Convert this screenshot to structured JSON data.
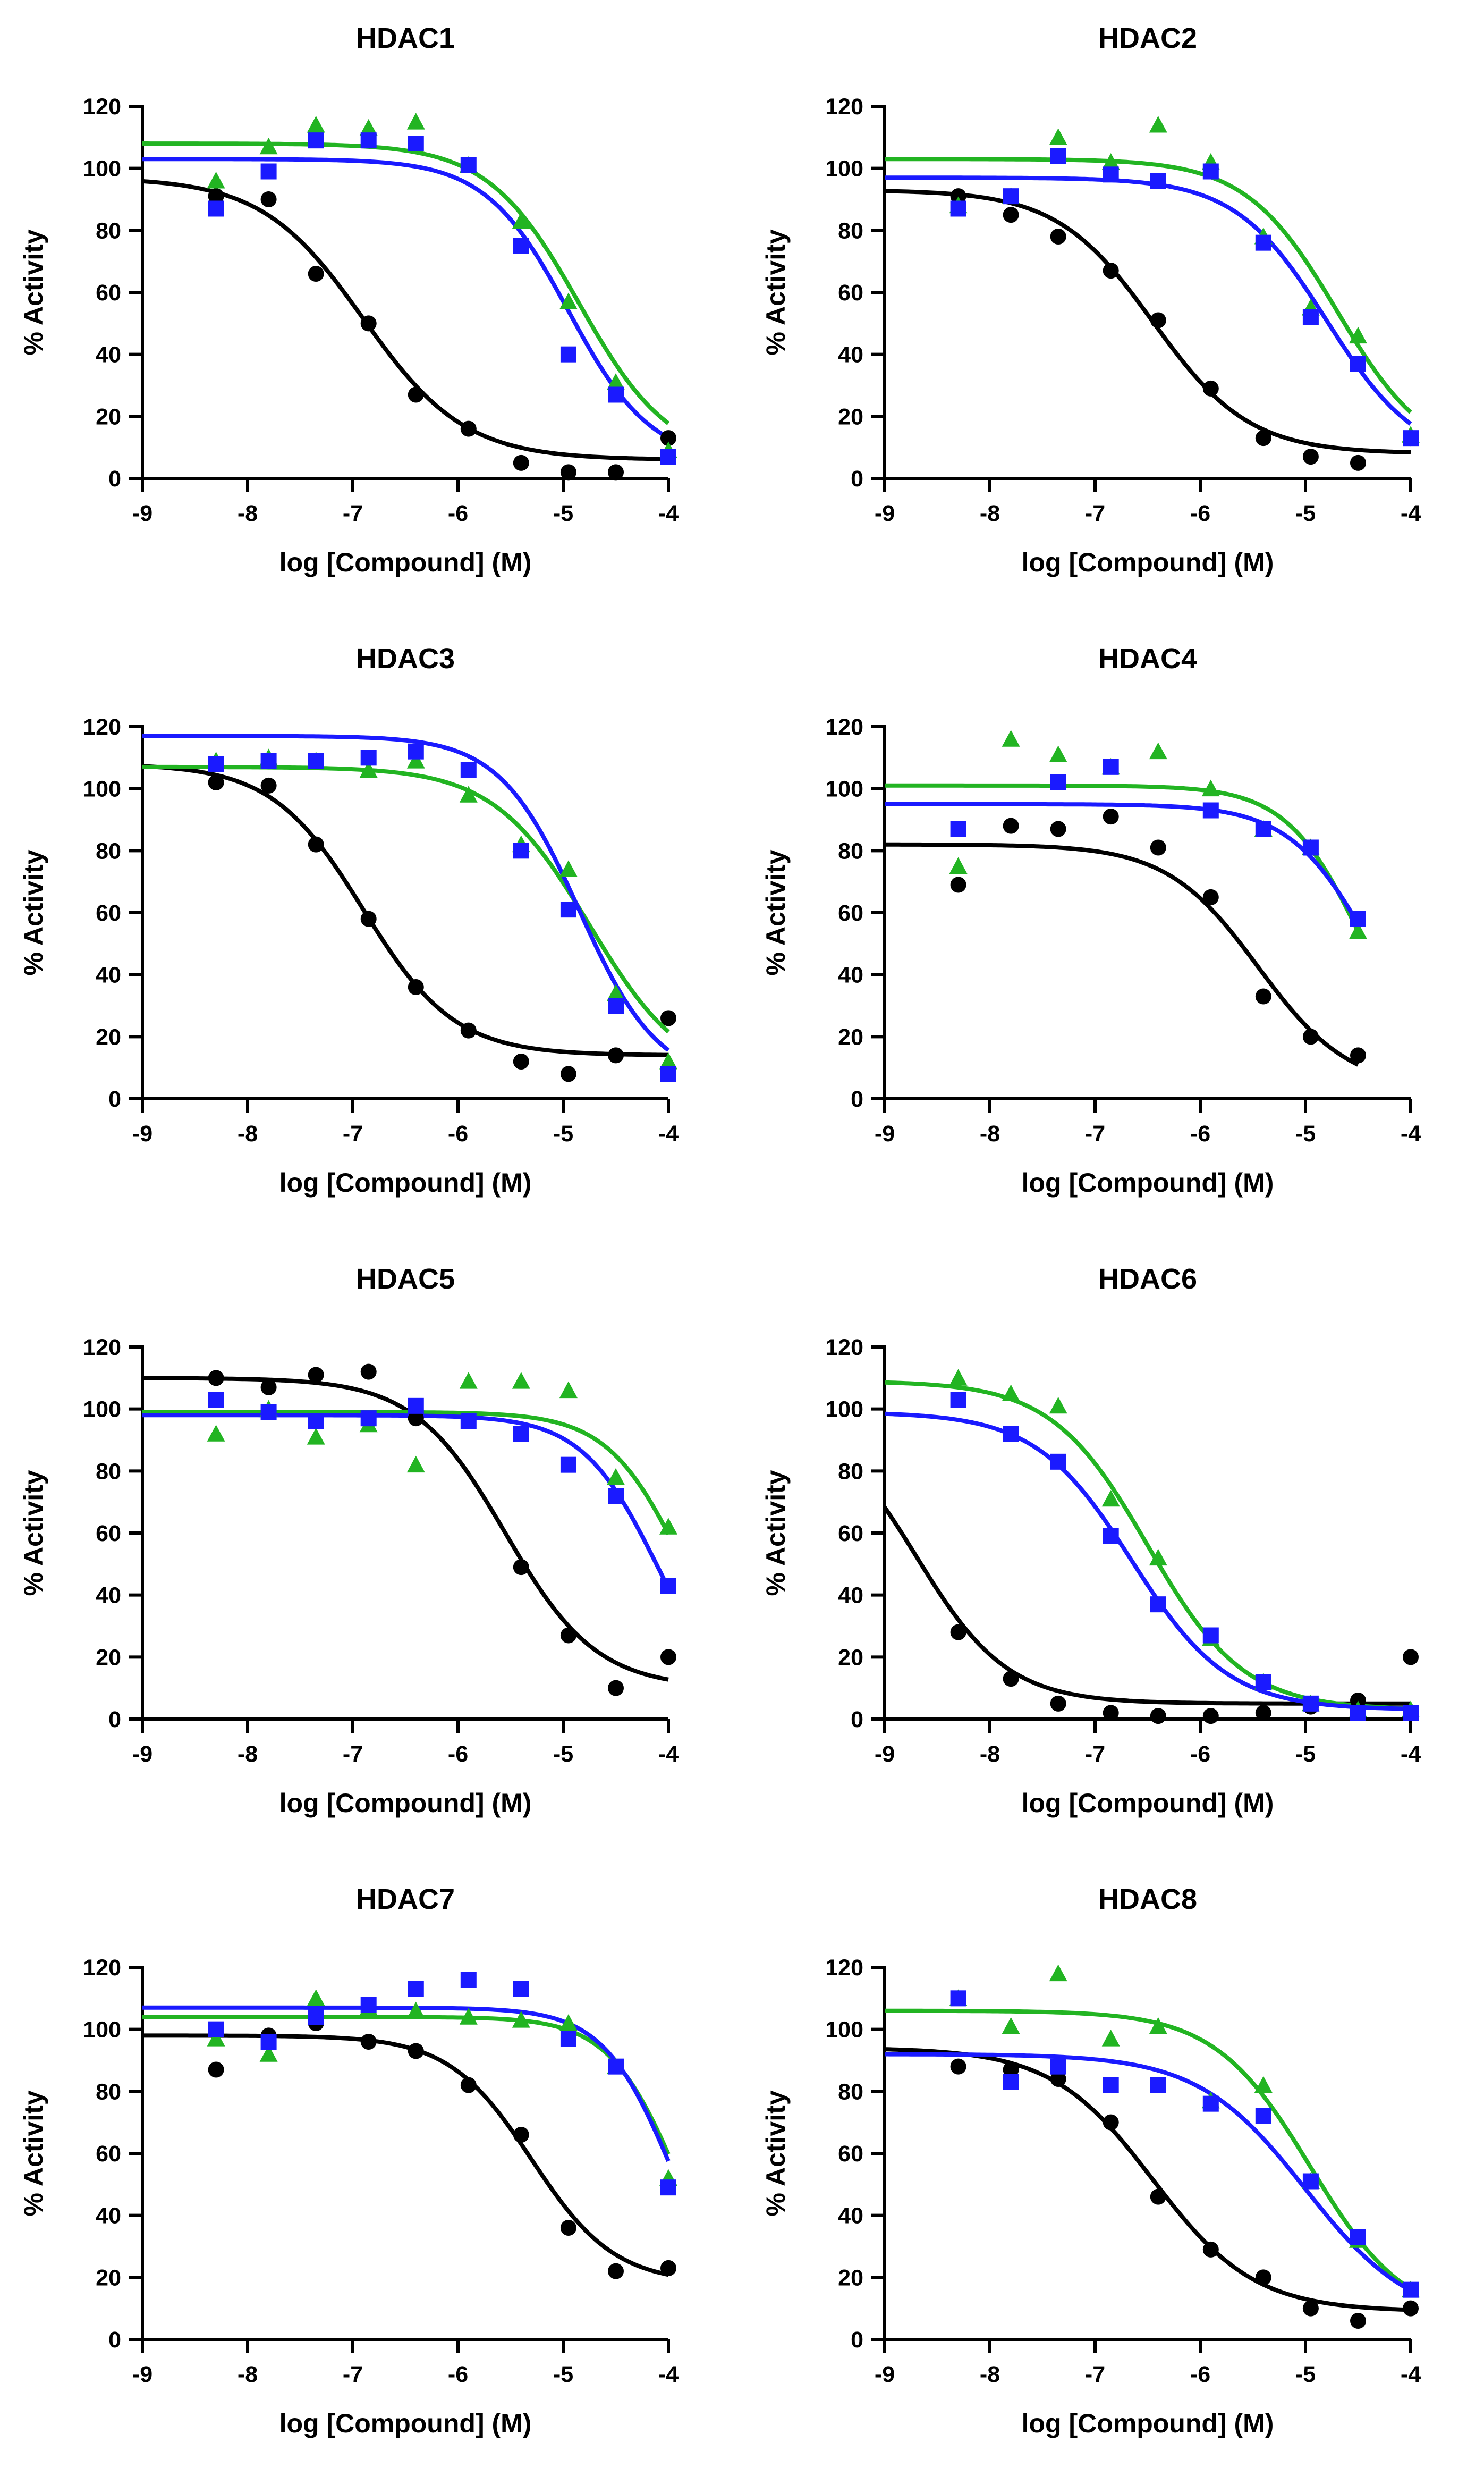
{
  "figure": {
    "x_axis_label": "log [Compound] (M)",
    "y_axis_label": "% Activity"
  },
  "series_colors": {
    "black": "#000000",
    "green": "#22b422",
    "blue": "#1a1aff"
  },
  "chart_data": [
    {
      "type": "scatter",
      "title": "HDAC1",
      "xlabel": "log [Compound] (M)",
      "ylabel": "% Activity",
      "xlim": [
        -9,
        -4
      ],
      "xticks": [
        -9,
        -8,
        -7,
        -6,
        -5,
        -4
      ],
      "ylim": [
        0,
        120
      ],
      "yticks": [
        0,
        20,
        40,
        60,
        80,
        100,
        120
      ],
      "series": [
        {
          "name": "black",
          "color": "#000000",
          "marker": "circle",
          "x": [
            -8.3,
            -7.8,
            -7.35,
            -6.85,
            -6.4,
            -5.9,
            -5.4,
            -4.95,
            -4.5,
            -4.0
          ],
          "y": [
            91,
            90,
            66,
            50,
            27,
            16,
            5,
            2,
            2,
            13
          ],
          "fit": {
            "top": 97,
            "bottom": 6,
            "logIC50": -6.9,
            "hill": 0.9
          }
        },
        {
          "name": "green",
          "color": "#22b422",
          "marker": "triangle",
          "x": [
            -8.3,
            -7.8,
            -7.35,
            -6.85,
            -6.4,
            -5.9,
            -5.4,
            -4.95,
            -4.5,
            -4.0
          ],
          "y": [
            96,
            107,
            114,
            113,
            115,
            101,
            83,
            57,
            31,
            9
          ],
          "fit": {
            "top": 108,
            "bottom": 5,
            "logIC50": -4.85,
            "hill": 1.0
          }
        },
        {
          "name": "blue",
          "color": "#1a1aff",
          "marker": "square",
          "x": [
            -8.3,
            -7.8,
            -7.35,
            -6.85,
            -6.4,
            -5.9,
            -5.4,
            -4.95,
            -4.5,
            -4.0
          ],
          "y": [
            87,
            99,
            109,
            109,
            108,
            101,
            75,
            40,
            27,
            7
          ],
          "fit": {
            "top": 103,
            "bottom": 5,
            "logIC50": -4.95,
            "hill": 1.1
          }
        }
      ]
    },
    {
      "type": "scatter",
      "title": "HDAC2",
      "xlabel": "log [Compound] (M)",
      "ylabel": "% Activity",
      "xlim": [
        -9,
        -4
      ],
      "xticks": [
        -9,
        -8,
        -7,
        -6,
        -5,
        -4
      ],
      "ylim": [
        0,
        120
      ],
      "yticks": [
        0,
        20,
        40,
        60,
        80,
        100,
        120
      ],
      "series": [
        {
          "name": "black",
          "color": "#000000",
          "marker": "circle",
          "x": [
            -8.3,
            -7.8,
            -7.35,
            -6.85,
            -6.4,
            -5.9,
            -5.4,
            -4.95,
            -4.5,
            -4.0
          ],
          "y": [
            91,
            85,
            78,
            67,
            51,
            29,
            13,
            7,
            5,
            13
          ],
          "fit": {
            "top": 93,
            "bottom": 8,
            "logIC50": -6.45,
            "hill": 0.95
          }
        },
        {
          "name": "green",
          "color": "#22b422",
          "marker": "triangle",
          "x": [
            -8.3,
            -7.8,
            -7.35,
            -6.85,
            -6.4,
            -5.9,
            -5.4,
            -4.95,
            -4.5,
            -4.0
          ],
          "y": [
            88,
            91,
            110,
            102,
            114,
            102,
            78,
            55,
            46,
            14
          ],
          "fit": {
            "top": 103,
            "bottom": 5,
            "logIC50": -4.7,
            "hill": 1.0
          }
        },
        {
          "name": "blue",
          "color": "#1a1aff",
          "marker": "square",
          "x": [
            -8.3,
            -7.8,
            -7.35,
            -6.85,
            -6.4,
            -5.9,
            -5.4,
            -4.95,
            -4.5,
            -4.0
          ],
          "y": [
            87,
            91,
            104,
            98,
            96,
            99,
            76,
            52,
            37,
            13
          ],
          "fit": {
            "top": 97,
            "bottom": 5,
            "logIC50": -4.8,
            "hill": 1.0
          }
        }
      ]
    },
    {
      "type": "scatter",
      "title": "HDAC3",
      "xlabel": "log [Compound] (M)",
      "ylabel": "% Activity",
      "xlim": [
        -9,
        -4
      ],
      "xticks": [
        -9,
        -8,
        -7,
        -6,
        -5,
        -4
      ],
      "ylim": [
        0,
        120
      ],
      "yticks": [
        0,
        20,
        40,
        60,
        80,
        100,
        120
      ],
      "series": [
        {
          "name": "black",
          "color": "#000000",
          "marker": "circle",
          "x": [
            -8.3,
            -7.8,
            -7.35,
            -6.85,
            -6.4,
            -5.9,
            -5.4,
            -4.95,
            -4.5,
            -4.0
          ],
          "y": [
            102,
            101,
            82,
            58,
            36,
            22,
            12,
            8,
            14,
            26
          ],
          "fit": {
            "top": 108,
            "bottom": 14,
            "logIC50": -6.9,
            "hill": 1.0
          }
        },
        {
          "name": "green",
          "color": "#22b422",
          "marker": "triangle",
          "x": [
            -8.3,
            -7.8,
            -7.35,
            -6.85,
            -6.4,
            -5.9,
            -5.4,
            -4.95,
            -4.5,
            -4.0
          ],
          "y": [
            109,
            110,
            109,
            106,
            109,
            98,
            82,
            74,
            34,
            12
          ],
          "fit": {
            "top": 107,
            "bottom": 5,
            "logIC50": -4.75,
            "hill": 0.95
          }
        },
        {
          "name": "blue",
          "color": "#1a1aff",
          "marker": "square",
          "x": [
            -8.3,
            -7.8,
            -7.35,
            -6.85,
            -6.4,
            -5.9,
            -5.4,
            -4.95,
            -4.5,
            -4.0
          ],
          "y": [
            108,
            109,
            109,
            110,
            112,
            106,
            80,
            61,
            30,
            8
          ],
          "fit": {
            "top": 117,
            "bottom": 5,
            "logIC50": -4.85,
            "hill": 1.15
          }
        }
      ]
    },
    {
      "type": "scatter",
      "title": "HDAC4",
      "xlabel": "log [Compound] (M)",
      "ylabel": "% Activity",
      "xlim": [
        -9,
        -4
      ],
      "xticks": [
        -9,
        -8,
        -7,
        -6,
        -5,
        -4
      ],
      "ylim": [
        0,
        120
      ],
      "yticks": [
        0,
        20,
        40,
        60,
        80,
        100,
        120
      ],
      "series": [
        {
          "name": "black",
          "color": "#000000",
          "marker": "circle",
          "x": [
            -8.3,
            -7.8,
            -7.35,
            -6.85,
            -6.4,
            -5.9,
            -5.4,
            -4.95,
            -4.5
          ],
          "y": [
            69,
            88,
            87,
            91,
            81,
            65,
            33,
            20,
            14
          ],
          "xmax": -4.5,
          "fit": {
            "top": 82,
            "bottom": 3,
            "logIC50": -5.45,
            "hill": 1.0
          }
        },
        {
          "name": "green",
          "color": "#22b422",
          "marker": "triangle",
          "x": [
            -8.3,
            -7.8,
            -7.35,
            -6.85,
            -6.4,
            -5.9,
            -5.4,
            -4.95,
            -4.5
          ],
          "y": [
            75,
            116,
            111,
            107,
            112,
            100,
            87,
            81,
            54
          ],
          "xmax": -4.5,
          "fit": {
            "top": 101,
            "bottom": 0,
            "logIC50": -4.45,
            "hill": 1.2
          }
        },
        {
          "name": "blue",
          "color": "#1a1aff",
          "marker": "square",
          "x": [
            -8.3,
            -7.35,
            -6.85,
            -5.9,
            -5.4,
            -4.95,
            -4.5
          ],
          "y": [
            87,
            102,
            107,
            93,
            87,
            81,
            58
          ],
          "xmax": -4.5,
          "fit": {
            "top": 95,
            "bottom": 0,
            "logIC50": -4.35,
            "hill": 1.1
          }
        }
      ]
    },
    {
      "type": "scatter",
      "title": "HDAC5",
      "xlabel": "log [Compound] (M)",
      "ylabel": "% Activity",
      "xlim": [
        -9,
        -4
      ],
      "xticks": [
        -9,
        -8,
        -7,
        -6,
        -5,
        -4
      ],
      "ylim": [
        0,
        120
      ],
      "yticks": [
        0,
        20,
        40,
        60,
        80,
        100,
        120
      ],
      "series": [
        {
          "name": "black",
          "color": "#000000",
          "marker": "circle",
          "x": [
            -8.3,
            -7.8,
            -7.35,
            -6.85,
            -6.4,
            -5.4,
            -4.95,
            -4.5,
            -4.0
          ],
          "y": [
            110,
            107,
            111,
            112,
            97,
            49,
            27,
            10,
            20
          ],
          "fit": {
            "top": 110,
            "bottom": 10,
            "logIC50": -5.55,
            "hill": 1.0
          }
        },
        {
          "name": "green",
          "color": "#22b422",
          "marker": "triangle",
          "x": [
            -8.3,
            -7.8,
            -7.35,
            -6.85,
            -6.4,
            -5.9,
            -5.4,
            -4.95,
            -4.5,
            -4.0
          ],
          "y": [
            92,
            100,
            91,
            95,
            82,
            109,
            109,
            106,
            78,
            62
          ],
          "fit": {
            "top": 99,
            "bottom": 0,
            "logIC50": -3.85,
            "hill": 1.2
          }
        },
        {
          "name": "blue",
          "color": "#1a1aff",
          "marker": "square",
          "x": [
            -8.3,
            -7.8,
            -7.35,
            -6.85,
            -6.4,
            -5.9,
            -5.4,
            -4.95,
            -4.5,
            -4.0
          ],
          "y": [
            103,
            99,
            96,
            97,
            101,
            96,
            92,
            82,
            72,
            43
          ],
          "fit": {
            "top": 98,
            "bottom": 0,
            "logIC50": -4.1,
            "hill": 1.2
          }
        }
      ]
    },
    {
      "type": "scatter",
      "title": "HDAC6",
      "xlabel": "log [Compound] (M)",
      "ylabel": "% Activity",
      "xlim": [
        -9,
        -4
      ],
      "xticks": [
        -9,
        -8,
        -7,
        -6,
        -5,
        -4
      ],
      "ylim": [
        0,
        120
      ],
      "yticks": [
        0,
        20,
        40,
        60,
        80,
        100,
        120
      ],
      "series": [
        {
          "name": "black",
          "color": "#000000",
          "marker": "circle",
          "x": [
            -8.3,
            -7.8,
            -7.35,
            -6.85,
            -6.4,
            -5.9,
            -5.4,
            -4.95,
            -4.5,
            -4.0
          ],
          "y": [
            28,
            13,
            5,
            2,
            1,
            1,
            2,
            4,
            6,
            20
          ],
          "fit": {
            "top": 100,
            "bottom": 5,
            "logIC50": -8.7,
            "hill": 1.0
          }
        },
        {
          "name": "green",
          "color": "#22b422",
          "marker": "triangle",
          "x": [
            -8.3,
            -7.8,
            -7.35,
            -6.85,
            -6.4,
            -5.9,
            -5.4,
            -4.95,
            -4.5,
            -4.0
          ],
          "y": [
            110,
            105,
            101,
            71,
            52,
            26,
            12,
            5,
            3,
            3
          ],
          "fit": {
            "top": 109,
            "bottom": 3,
            "logIC50": -6.5,
            "hill": 0.95
          }
        },
        {
          "name": "blue",
          "color": "#1a1aff",
          "marker": "square",
          "x": [
            -8.3,
            -7.8,
            -7.35,
            -6.85,
            -6.4,
            -5.9,
            -5.4,
            -4.95,
            -4.5,
            -4.0
          ],
          "y": [
            103,
            92,
            83,
            59,
            37,
            27,
            12,
            5,
            2,
            2
          ],
          "fit": {
            "top": 99,
            "bottom": 3,
            "logIC50": -6.65,
            "hill": 0.95
          }
        }
      ]
    },
    {
      "type": "scatter",
      "title": "HDAC7",
      "xlabel": "log [Compound] (M)",
      "ylabel": "% Activity",
      "xlim": [
        -9,
        -4
      ],
      "xticks": [
        -9,
        -8,
        -7,
        -6,
        -5,
        -4
      ],
      "ylim": [
        0,
        120
      ],
      "yticks": [
        0,
        20,
        40,
        60,
        80,
        100,
        120
      ],
      "series": [
        {
          "name": "black",
          "color": "#000000",
          "marker": "circle",
          "x": [
            -8.3,
            -7.8,
            -7.35,
            -6.85,
            -6.4,
            -5.9,
            -5.4,
            -4.95,
            -4.5,
            -4.0
          ],
          "y": [
            87,
            98,
            102,
            96,
            93,
            82,
            66,
            36,
            22,
            23
          ],
          "fit": {
            "top": 98,
            "bottom": 18,
            "logIC50": -5.3,
            "hill": 1.1
          }
        },
        {
          "name": "green",
          "color": "#22b422",
          "marker": "triangle",
          "x": [
            -8.3,
            -7.8,
            -7.35,
            -6.85,
            -6.4,
            -5.9,
            -5.4,
            -4.95,
            -4.5,
            -4.0
          ],
          "y": [
            97,
            92,
            110,
            107,
            106,
            104,
            103,
            102,
            88,
            52
          ],
          "fit": {
            "top": 104,
            "bottom": 0,
            "logIC50": -3.9,
            "hill": 1.3
          }
        },
        {
          "name": "blue",
          "color": "#1a1aff",
          "marker": "square",
          "x": [
            -8.3,
            -7.8,
            -7.35,
            -6.85,
            -6.4,
            -5.9,
            -5.4,
            -4.95,
            -4.5,
            -4.0
          ],
          "y": [
            100,
            96,
            104,
            108,
            113,
            116,
            113,
            97,
            88,
            49
          ],
          "fit": {
            "top": 107,
            "bottom": 0,
            "logIC50": -3.95,
            "hill": 1.3
          }
        }
      ]
    },
    {
      "type": "scatter",
      "title": "HDAC8",
      "xlabel": "log [Compound] (M)",
      "ylabel": "% Activity",
      "xlim": [
        -9,
        -4
      ],
      "xticks": [
        -9,
        -8,
        -7,
        -6,
        -5,
        -4
      ],
      "ylim": [
        0,
        120
      ],
      "yticks": [
        0,
        20,
        40,
        60,
        80,
        100,
        120
      ],
      "series": [
        {
          "name": "black",
          "color": "#000000",
          "marker": "circle",
          "x": [
            -8.3,
            -7.8,
            -7.35,
            -6.85,
            -6.4,
            -5.9,
            -5.4,
            -4.95,
            -4.5,
            -4.0
          ],
          "y": [
            88,
            87,
            84,
            70,
            46,
            29,
            20,
            10,
            6,
            10
          ],
          "fit": {
            "top": 94,
            "bottom": 9,
            "logIC50": -6.45,
            "hill": 0.9
          }
        },
        {
          "name": "green",
          "color": "#22b422",
          "marker": "triangle",
          "x": [
            -8.3,
            -7.8,
            -7.35,
            -6.85,
            -6.4,
            -5.9,
            -5.4,
            -4.95,
            -4.5,
            -4.0
          ],
          "y": [
            110,
            101,
            118,
            97,
            101,
            77,
            82,
            51,
            32,
            16
          ],
          "fit": {
            "top": 106,
            "bottom": 5,
            "logIC50": -4.95,
            "hill": 0.95
          }
        },
        {
          "name": "blue",
          "color": "#1a1aff",
          "marker": "square",
          "x": [
            -8.3,
            -7.8,
            -7.35,
            -6.85,
            -6.4,
            -5.9,
            -5.4,
            -4.95,
            -4.5,
            -4.0
          ],
          "y": [
            110,
            83,
            88,
            82,
            82,
            76,
            72,
            51,
            33,
            16
          ],
          "fit": {
            "top": 92,
            "bottom": 5,
            "logIC50": -5.0,
            "hill": 0.85
          }
        }
      ]
    }
  ]
}
